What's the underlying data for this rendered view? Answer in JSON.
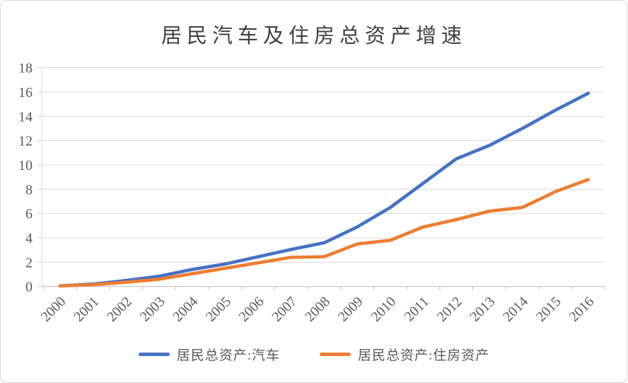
{
  "title": "居民汽车及住房总资产增速",
  "chart_data": {
    "type": "line",
    "title": "居民汽车及住房总资产增速",
    "x": [
      2000,
      2001,
      2002,
      2003,
      2004,
      2005,
      2006,
      2007,
      2008,
      2009,
      2010,
      2011,
      2012,
      2013,
      2014,
      2015,
      2016
    ],
    "series": [
      {
        "name": "居民总资产:汽车",
        "color": "#4472C4",
        "values": [
          0.05,
          0.2,
          0.5,
          0.85,
          1.4,
          1.85,
          2.45,
          3.05,
          3.6,
          4.9,
          6.5,
          8.5,
          10.5,
          11.6,
          13.0,
          14.5,
          15.9
        ]
      },
      {
        "name": "居民总资产:住房资产",
        "color": "#ED7D31",
        "values": [
          0.05,
          0.15,
          0.35,
          0.6,
          1.05,
          1.5,
          1.95,
          2.4,
          2.45,
          3.5,
          3.8,
          4.9,
          5.5,
          6.2,
          6.5,
          7.8,
          8.8
        ]
      }
    ],
    "ylim": [
      0,
      18
    ],
    "yticks": [
      0,
      2,
      4,
      6,
      8,
      10,
      12,
      14,
      16,
      18
    ],
    "grid": true,
    "legend_position": "bottom",
    "axis_color": "#bfbfbf",
    "grid_color": "#d9d9d9",
    "label_color": "#595959"
  }
}
